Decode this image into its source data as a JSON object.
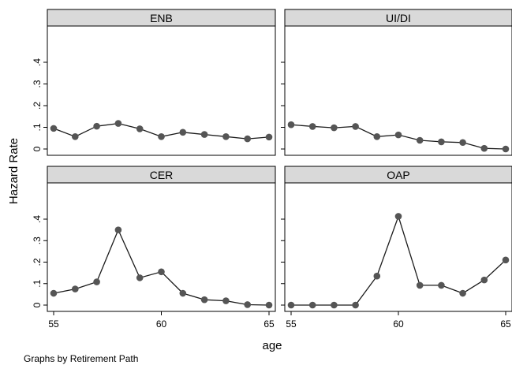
{
  "chart_data": {
    "type": "line",
    "layout": "2x2 small multiples",
    "ylabel": "Hazard Rate",
    "xlabel": "age",
    "note": "Graphs by Retirement Path",
    "xlim": [
      55,
      65
    ],
    "ylim": [
      0,
      0.4
    ],
    "x_ticks": [
      55,
      60,
      65
    ],
    "x_tick_labels": [
      "55",
      "60",
      "65"
    ],
    "y_ticks": [
      0,
      0.1,
      0.2,
      0.3,
      0.4
    ],
    "y_tick_labels": [
      "0",
      ".1",
      ".2",
      ".3",
      ".4"
    ],
    "line_color": "#1a1a1a",
    "marker_color": "#555555",
    "strip_color": "#d9d9d9",
    "x": [
      55,
      56,
      57,
      58,
      59,
      60,
      61,
      62,
      63,
      64,
      65
    ],
    "panels": [
      {
        "title": "ENB",
        "values": [
          0.095,
          0.057,
          0.105,
          0.118,
          0.093,
          0.057,
          0.077,
          0.067,
          0.057,
          0.047,
          0.055
        ]
      },
      {
        "title": "UI/DI",
        "values": [
          0.112,
          0.104,
          0.098,
          0.104,
          0.057,
          0.065,
          0.04,
          0.033,
          0.03,
          0.003,
          0.0
        ]
      },
      {
        "title": "CER",
        "values": [
          0.055,
          0.075,
          0.108,
          0.35,
          0.127,
          0.155,
          0.055,
          0.025,
          0.02,
          0.002,
          0.0
        ]
      },
      {
        "title": "OAP",
        "values": [
          0.0,
          0.0,
          0.0,
          0.0,
          0.135,
          0.413,
          0.092,
          0.092,
          0.055,
          0.117,
          0.21
        ]
      }
    ]
  }
}
